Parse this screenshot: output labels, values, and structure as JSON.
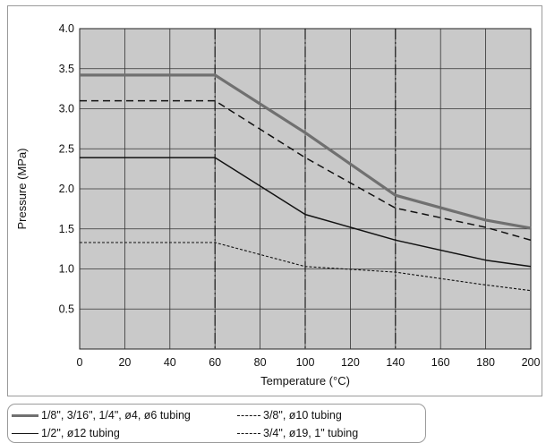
{
  "chart_data": {
    "type": "line",
    "title": "",
    "xlabel": "Temperature (°C)",
    "ylabel": "Pressure (MPa)",
    "xlim": [
      0,
      200
    ],
    "ylim": [
      0,
      4.0
    ],
    "xticks": [
      "0",
      "20",
      "40",
      "60",
      "80",
      "100",
      "120",
      "140",
      "160",
      "180",
      "200"
    ],
    "yticks": [
      "0.5",
      "1.0",
      "1.5",
      "2.0",
      "2.5",
      "3.0",
      "3.5",
      "4.0"
    ],
    "grid": true,
    "reference_lines_x": [
      60,
      100,
      140
    ],
    "legend_position": "bottom",
    "series": [
      {
        "name": "1/8\", 3/16\", 1/4\", ø4, ø6 tubing",
        "style": "thick-gray",
        "color": "#707070",
        "x": [
          0,
          60,
          100,
          140,
          180,
          200
        ],
        "y": [
          3.42,
          3.42,
          2.7,
          1.92,
          1.61,
          1.51
        ]
      },
      {
        "name": "3/8\", ø10 tubing",
        "style": "dashed",
        "color": "#111111",
        "x": [
          0,
          60,
          100,
          140,
          180,
          200
        ],
        "y": [
          3.1,
          3.1,
          2.39,
          1.76,
          1.52,
          1.36
        ]
      },
      {
        "name": "1/2\", ø12 tubing",
        "style": "solid",
        "color": "#111111",
        "x": [
          0,
          60,
          100,
          140,
          180,
          200
        ],
        "y": [
          2.39,
          2.39,
          1.68,
          1.36,
          1.11,
          1.03
        ]
      },
      {
        "name": "3/4\", ø19, 1\" tubing",
        "style": "dotted",
        "color": "#111111",
        "x": [
          0,
          60,
          100,
          140,
          180,
          200
        ],
        "y": [
          1.33,
          1.33,
          1.03,
          0.96,
          0.8,
          0.73
        ]
      }
    ]
  }
}
